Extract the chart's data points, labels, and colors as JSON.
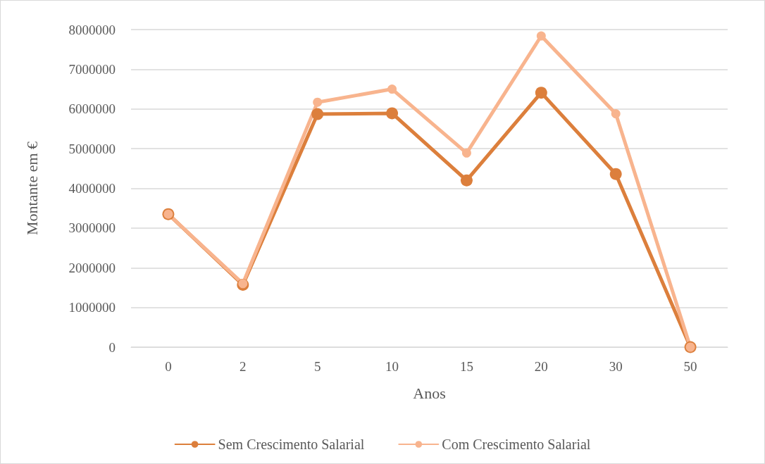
{
  "chart_data": {
    "type": "line",
    "xlabel": "Anos",
    "ylabel": "Montante em €",
    "categories": [
      "0",
      "2",
      "5",
      "10",
      "15",
      "20",
      "30",
      "50"
    ],
    "series": [
      {
        "name": "Sem Crescimento Salarial",
        "color": "#dc7f3c",
        "values": [
          3350000,
          1570000,
          5870000,
          5890000,
          4200000,
          6410000,
          4360000,
          0
        ]
      },
      {
        "name": "Com Crescimento Salarial",
        "color": "#f8b48e",
        "values": [
          3350000,
          1600000,
          6170000,
          6500000,
          4890000,
          7840000,
          5880000,
          0
        ]
      }
    ],
    "ylim": [
      0,
      8000000
    ],
    "yticks": [
      0,
      1000000,
      2000000,
      3000000,
      4000000,
      5000000,
      6000000,
      7000000,
      8000000
    ],
    "grid": "y",
    "legend": "bottom",
    "marker": "circle",
    "line_style": "solid"
  }
}
